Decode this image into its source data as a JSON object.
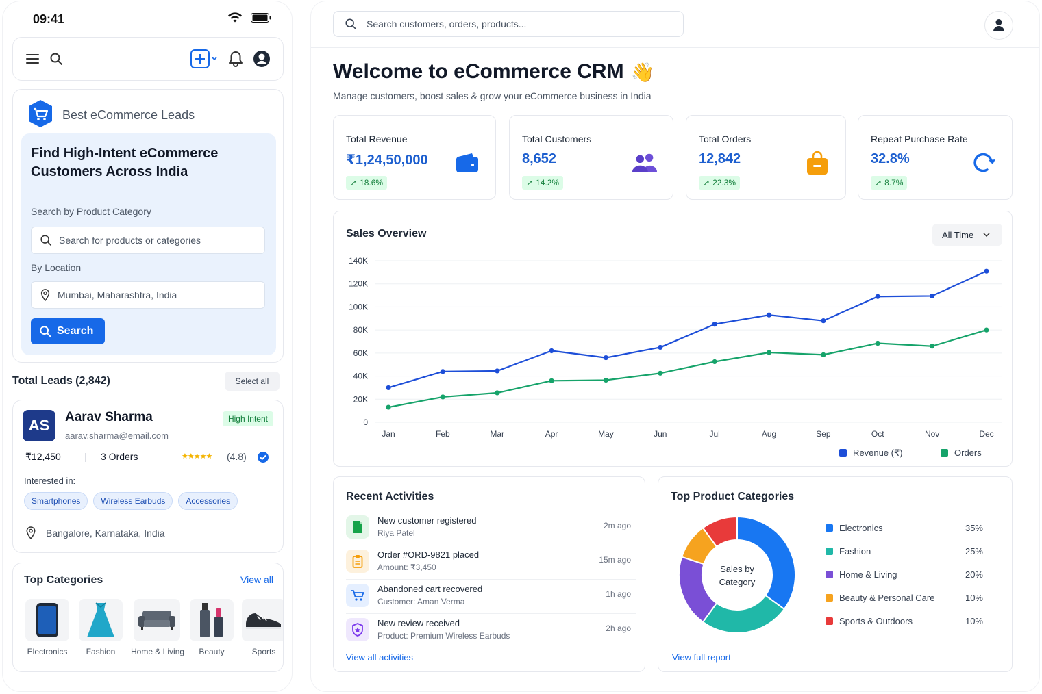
{
  "status": {
    "time": "09:41"
  },
  "brand": {
    "title": "Best eCommerce Leads",
    "color": "#1769e8"
  },
  "finder": {
    "title": "Find High-Intent eCommerce Customers Across India",
    "category_label": "Search by Product Category",
    "category_placeholder": "Search for products or categories",
    "location_label": "By Location",
    "location_value": "Mumbai, Maharashtra, India",
    "search_label": "Search"
  },
  "leads": {
    "total_label": "Total Leads (2,842)",
    "select_all": "Select all",
    "lead": {
      "initials": "AS",
      "name": "Aarav Sharma",
      "email": "aarav.sharma@email.com",
      "badge": "High Intent",
      "amount": "₹12,450",
      "orders": "3 Orders",
      "stars": "★★★★★",
      "rating": "(4.8)",
      "interested_label": "Interested in:",
      "interests": [
        "Smartphones",
        "Wireless Earbuds",
        "Accessories"
      ],
      "location": "Bangalore, Karnataka, India"
    }
  },
  "top_categories": {
    "title": "Top Categories",
    "view_all": "View all",
    "items": [
      "Electronics",
      "Fashion",
      "Home & Living",
      "Beauty",
      "Sports"
    ]
  },
  "header": {
    "search_placeholder": "Search customers, orders, products..."
  },
  "welcome": {
    "title": "Welcome to eCommerce CRM",
    "emoji": "👋",
    "subtitle": "Manage customers, boost sales & grow your eCommerce business in India"
  },
  "kpis": [
    {
      "title": "Total Revenue",
      "value": "₹1,24,50,000",
      "delta": "18.6%",
      "icon": "wallet-icon",
      "color": "#1769e8"
    },
    {
      "title": "Total Customers",
      "value": "8,652",
      "delta": "14.2%",
      "icon": "users-icon",
      "color": "#6d4fd8"
    },
    {
      "title": "Total Orders",
      "value": "12,842",
      "delta": "22.3%",
      "icon": "shopping-bag-icon",
      "color": "#f59e0b"
    },
    {
      "title": "Repeat Purchase Rate",
      "value": "32.8%",
      "delta": "8.7%",
      "icon": "refresh-icon",
      "color": "#1769e8"
    }
  ],
  "sales": {
    "title": "Sales Overview",
    "range": "All Time"
  },
  "chart_data": {
    "type": "line",
    "title": "Sales Overview",
    "categories": [
      "Jan",
      "Feb",
      "Mar",
      "Apr",
      "May",
      "Jun",
      "Jul",
      "Aug",
      "Sep",
      "Oct",
      "Nov",
      "Dec"
    ],
    "y_ticks": [
      "0",
      "20K",
      "40K",
      "60K",
      "80K",
      "100K",
      "120K",
      "140K"
    ],
    "ylim": [
      0,
      140000
    ],
    "grid": true,
    "legend_position": "bottom-right",
    "series": [
      {
        "name": "Revenue (₹)",
        "color": "#1d4ed8",
        "values": [
          30000,
          44000,
          44500,
          62000,
          56000,
          65000,
          85000,
          93000,
          88000,
          109000,
          109500,
          131000
        ]
      },
      {
        "name": "Orders",
        "color": "#16a36a",
        "values": [
          13000,
          22000,
          25500,
          36000,
          36500,
          42500,
          52500,
          60500,
          58500,
          68500,
          66000,
          80000
        ]
      }
    ]
  },
  "activities": {
    "title": "Recent Activities",
    "view_all": "View all activities",
    "items": [
      {
        "main": "New customer registered",
        "sub": "Riya Patel",
        "time": "2m ago",
        "icon": "user-add-icon",
        "color": "#16a34a",
        "bg": "#e3f6e8"
      },
      {
        "main": "Order #ORD-9821 placed",
        "sub": "Amount: ₹3,450",
        "time": "15m ago",
        "icon": "clipboard-icon",
        "color": "#f59e0b",
        "bg": "#fdf1dd"
      },
      {
        "main": "Abandoned cart recovered",
        "sub": "Customer: Aman Verma",
        "time": "1h ago",
        "icon": "cart-icon",
        "color": "#1769e8",
        "bg": "#e5efff"
      },
      {
        "main": "New review received",
        "sub": "Product: Premium Wireless Earbuds",
        "time": "2h ago",
        "icon": "star-shield-icon",
        "color": "#7c3aed",
        "bg": "#efe8fd"
      }
    ]
  },
  "product_categories": {
    "title": "Top Product Categories",
    "center_label_1": "Sales by",
    "center_label_2": "Category",
    "view_report": "View full report",
    "slices": [
      {
        "name": "Electronics",
        "pct": "35%",
        "value": 35,
        "color": "#1877f2"
      },
      {
        "name": "Fashion",
        "pct": "25%",
        "value": 25,
        "color": "#20b8a8"
      },
      {
        "name": "Home & Living",
        "pct": "20%",
        "value": 20,
        "color": "#7a4fd6"
      },
      {
        "name": "Beauty & Personal Care",
        "pct": "10%",
        "value": 10,
        "color": "#f6a31f"
      },
      {
        "name": "Sports & Outdoors",
        "pct": "10%",
        "value": 10,
        "color": "#e83a3a"
      }
    ]
  }
}
